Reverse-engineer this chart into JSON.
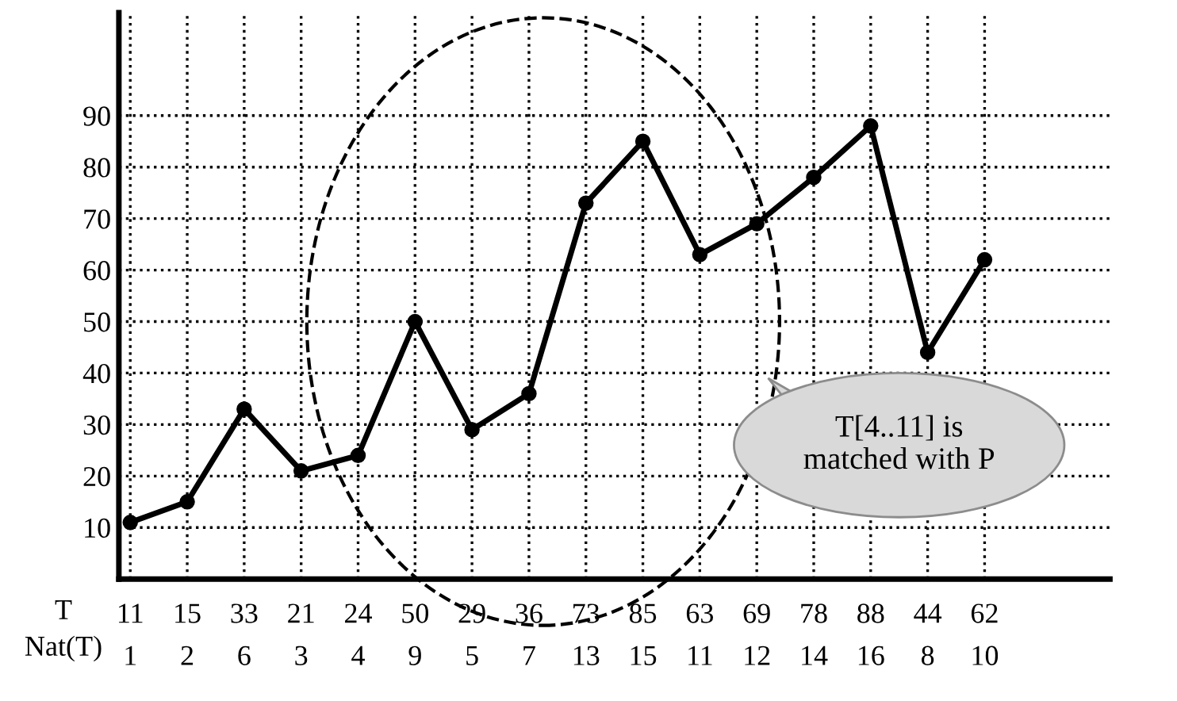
{
  "chart_data": {
    "type": "line",
    "categories": [
      "1",
      "2",
      "6",
      "3",
      "4",
      "9",
      "5",
      "7",
      "13",
      "15",
      "11",
      "12",
      "14",
      "16",
      "8",
      "10"
    ],
    "series": [
      {
        "color": "#000000",
        "values": [
          11,
          15,
          33,
          21,
          24,
          50,
          29,
          36,
          73,
          85,
          63,
          69,
          78,
          88,
          44,
          62
        ]
      }
    ],
    "data_labels": true,
    "ylim": [
      0,
      110
    ],
    "yticks": [
      10,
      20,
      30,
      40,
      50,
      60,
      70,
      80,
      90
    ],
    "grid": true,
    "marker": "circle",
    "line_style": "solid",
    "annotations": [
      "T",
      "Nat(T)",
      "T[4..11] is\nmatched with P"
    ]
  }
}
